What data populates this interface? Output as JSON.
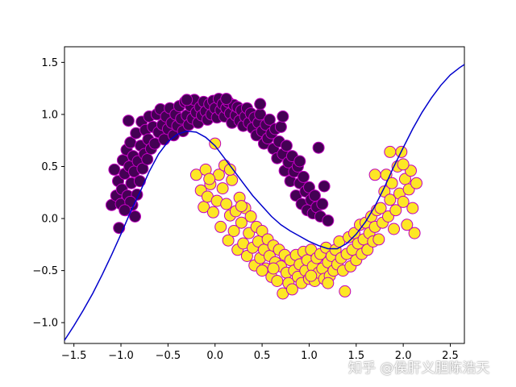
{
  "colors": {
    "class0_fill": "#440154",
    "class1_fill": "#fde725",
    "point_edge": "#c000c0",
    "boundary": "#0000cc",
    "axes": "#000000"
  },
  "watermark": "知乎 @侯肝义胆陈浩天",
  "chart_data": {
    "type": "scatter",
    "title": "",
    "xlabel": "",
    "ylabel": "",
    "xlim": [
      -1.6,
      2.65
    ],
    "ylim": [
      -1.2,
      1.65
    ],
    "grid": false,
    "legend": "none",
    "xticks": [
      -1.5,
      -1.0,
      -0.5,
      0.0,
      0.5,
      1.0,
      1.5,
      2.0,
      2.5
    ],
    "xtick_labels": [
      "−1.5",
      "−1.0",
      "−0.5",
      "0.0",
      "0.5",
      "1.0",
      "1.5",
      "2.0",
      "2.5"
    ],
    "yticks": [
      -1.0,
      -0.5,
      0.0,
      0.5,
      1.0,
      1.5
    ],
    "ytick_labels": [
      "−1.0",
      "−0.5",
      "0.0",
      "0.5",
      "1.0",
      "1.5"
    ],
    "series": [
      {
        "color": "#440154",
        "points": [
          [
            -1.1,
            0.13
          ],
          [
            -1.07,
            0.47
          ],
          [
            -1.05,
            0.22
          ],
          [
            -1.03,
            0.36
          ],
          [
            -1.02,
            -0.09
          ],
          [
            -1.0,
            0.14
          ],
          [
            -0.99,
            0.28
          ],
          [
            -0.98,
            0.56
          ],
          [
            -0.96,
            0.43
          ],
          [
            -0.95,
            0.08
          ],
          [
            -0.94,
            0.66
          ],
          [
            -0.93,
            0.22
          ],
          [
            -0.92,
            0.94
          ],
          [
            -0.91,
            0.5
          ],
          [
            -0.9,
            0.73
          ],
          [
            -0.89,
            0.34
          ],
          [
            -0.88,
            0.13
          ],
          [
            -0.87,
            0.6
          ],
          [
            -0.86,
            0.45
          ],
          [
            -0.85,
            0.02
          ],
          [
            -0.84,
            0.82
          ],
          [
            -0.83,
            0.23
          ],
          [
            -0.82,
            0.55
          ],
          [
            -0.8,
            0.36
          ],
          [
            -0.79,
            0.7
          ],
          [
            -0.78,
            0.93
          ],
          [
            -0.77,
            0.48
          ],
          [
            -0.75,
            0.62
          ],
          [
            -0.74,
            0.85
          ],
          [
            -0.72,
            0.57
          ],
          [
            -0.71,
            0.76
          ],
          [
            -0.7,
            0.98
          ],
          [
            -0.68,
            0.67
          ],
          [
            -0.66,
            0.88
          ],
          [
            -0.64,
            0.72
          ],
          [
            -0.62,
            1.0
          ],
          [
            -0.6,
            0.83
          ],
          [
            -0.58,
            1.05
          ],
          [
            -0.56,
            0.9
          ],
          [
            -0.54,
            0.76
          ],
          [
            -0.52,
            0.98
          ],
          [
            -0.5,
            0.86
          ],
          [
            -0.48,
            1.06
          ],
          [
            -0.46,
            0.92
          ],
          [
            -0.44,
            0.8
          ],
          [
            -0.42,
            1.0
          ],
          [
            -0.4,
            0.89
          ],
          [
            -0.38,
            1.08
          ],
          [
            -0.36,
            0.96
          ],
          [
            -0.34,
            0.84
          ],
          [
            -0.32,
            1.12
          ],
          [
            -0.3,
            0.99
          ],
          [
            -0.28,
            0.9
          ],
          [
            -0.26,
            1.08
          ],
          [
            -0.24,
            0.96
          ],
          [
            -0.22,
            1.14
          ],
          [
            -0.2,
            1.02
          ],
          [
            -0.18,
            0.92
          ],
          [
            -0.16,
            1.07
          ],
          [
            -0.14,
            0.99
          ],
          [
            -0.12,
            1.12
          ],
          [
            -0.1,
            1.03
          ],
          [
            -0.08,
            0.95
          ],
          [
            -0.06,
            1.1
          ],
          [
            -0.04,
            1.0
          ],
          [
            -0.02,
            1.13
          ],
          [
            0.0,
            1.06
          ],
          [
            0.02,
            0.97
          ],
          [
            0.04,
            1.15
          ],
          [
            0.06,
            1.04
          ],
          [
            0.08,
            1.1
          ],
          [
            0.1,
            0.98
          ],
          [
            0.12,
            1.06
          ],
          [
            0.14,
            1.12
          ],
          [
            0.16,
            1.01
          ],
          [
            0.18,
            0.92
          ],
          [
            0.2,
            1.09
          ],
          [
            0.22,
            0.99
          ],
          [
            0.24,
            1.07
          ],
          [
            0.26,
            0.94
          ],
          [
            0.28,
            1.04
          ],
          [
            0.3,
            0.89
          ],
          [
            0.32,
            0.98
          ],
          [
            0.34,
            1.06
          ],
          [
            0.36,
            0.92
          ],
          [
            0.38,
            1.01
          ],
          [
            0.4,
            0.87
          ],
          [
            0.42,
            0.97
          ],
          [
            0.44,
            0.8
          ],
          [
            0.46,
            0.92
          ],
          [
            0.48,
            1.0
          ],
          [
            0.5,
            0.84
          ],
          [
            0.52,
            0.72
          ],
          [
            0.54,
            0.9
          ],
          [
            0.56,
            0.77
          ],
          [
            0.58,
            0.95
          ],
          [
            0.6,
            0.82
          ],
          [
            0.62,
            0.67
          ],
          [
            0.64,
            0.86
          ],
          [
            0.66,
            0.58
          ],
          [
            0.68,
            0.74
          ],
          [
            0.7,
            0.88
          ],
          [
            0.72,
            0.62
          ],
          [
            0.74,
            0.46
          ],
          [
            0.76,
            0.7
          ],
          [
            0.78,
            0.54
          ],
          [
            0.8,
            0.36
          ],
          [
            0.82,
            0.6
          ],
          [
            0.84,
            0.45
          ],
          [
            0.86,
            0.22
          ],
          [
            0.88,
            0.5
          ],
          [
            0.9,
            0.34
          ],
          [
            0.92,
            0.14
          ],
          [
            0.94,
            0.4
          ],
          [
            0.96,
            0.26
          ],
          [
            0.98,
            0.08
          ],
          [
            1.0,
            0.3
          ],
          [
            1.02,
            0.18
          ],
          [
            1.04,
            0.05
          ],
          [
            1.06,
            0.22
          ],
          [
            1.08,
            0.11
          ],
          [
            1.1,
            0.68
          ],
          [
            1.12,
            0.02
          ],
          [
            1.14,
            0.14
          ],
          [
            1.16,
            0.31
          ],
          [
            1.2,
            -0.02
          ],
          [
            -0.9,
            0.16
          ],
          [
            -0.96,
            0.08
          ],
          [
            0.12,
            1.15
          ],
          [
            0.48,
            1.1
          ],
          [
            -0.3,
            1.14
          ],
          [
            0.72,
            0.98
          ],
          [
            0.9,
            0.55
          ]
        ]
      },
      {
        "color": "#fde725",
        "points": [
          [
            -0.2,
            0.42
          ],
          [
            -0.15,
            0.27
          ],
          [
            -0.1,
            0.47
          ],
          [
            -0.12,
            0.11
          ],
          [
            -0.08,
            0.21
          ],
          [
            -0.05,
            0.33
          ],
          [
            -0.02,
            0.06
          ],
          [
            0.0,
            0.72
          ],
          [
            0.02,
            0.17
          ],
          [
            0.04,
            0.42
          ],
          [
            0.06,
            -0.08
          ],
          [
            0.08,
            0.29
          ],
          [
            0.1,
            0.51
          ],
          [
            0.12,
            0.14
          ],
          [
            0.14,
            -0.21
          ],
          [
            0.16,
            0.03
          ],
          [
            0.18,
            0.37
          ],
          [
            0.2,
            -0.12
          ],
          [
            0.22,
            0.07
          ],
          [
            0.24,
            -0.3
          ],
          [
            0.26,
            0.2
          ],
          [
            0.28,
            -0.04
          ],
          [
            0.3,
            -0.24
          ],
          [
            0.32,
            0.1
          ],
          [
            0.34,
            -0.36
          ],
          [
            0.36,
            -0.14
          ],
          [
            0.38,
            0.02
          ],
          [
            0.4,
            -0.28
          ],
          [
            0.42,
            -0.45
          ],
          [
            0.44,
            -0.08
          ],
          [
            0.46,
            -0.22
          ],
          [
            0.48,
            -0.38
          ],
          [
            0.5,
            -0.12
          ],
          [
            0.52,
            -0.3
          ],
          [
            0.54,
            -0.48
          ],
          [
            0.56,
            -0.2
          ],
          [
            0.58,
            -0.36
          ],
          [
            0.6,
            -0.56
          ],
          [
            0.62,
            -0.26
          ],
          [
            0.64,
            -0.42
          ],
          [
            0.66,
            -0.6
          ],
          [
            0.68,
            -0.3
          ],
          [
            0.7,
            -0.46
          ],
          [
            0.72,
            -0.72
          ],
          [
            0.74,
            -0.35
          ],
          [
            0.76,
            -0.52
          ],
          [
            0.78,
            -0.62
          ],
          [
            0.8,
            -0.4
          ],
          [
            0.82,
            -0.68
          ],
          [
            0.84,
            -0.5
          ],
          [
            0.86,
            -0.35
          ],
          [
            0.88,
            -0.56
          ],
          [
            0.9,
            -0.44
          ],
          [
            0.92,
            -0.62
          ],
          [
            0.94,
            -0.32
          ],
          [
            0.96,
            -0.5
          ],
          [
            0.98,
            -0.4
          ],
          [
            1.0,
            -0.58
          ],
          [
            1.02,
            -0.3
          ],
          [
            1.04,
            -0.46
          ],
          [
            1.06,
            -0.6
          ],
          [
            1.08,
            -0.38
          ],
          [
            1.1,
            -0.52
          ],
          [
            1.12,
            -0.34
          ],
          [
            1.14,
            -0.48
          ],
          [
            1.16,
            -0.58
          ],
          [
            1.18,
            -0.28
          ],
          [
            1.2,
            -0.42
          ],
          [
            1.22,
            -0.55
          ],
          [
            1.24,
            -0.36
          ],
          [
            1.26,
            -0.5
          ],
          [
            1.28,
            -0.3
          ],
          [
            1.3,
            -0.44
          ],
          [
            1.32,
            -0.22
          ],
          [
            1.34,
            -0.38
          ],
          [
            1.36,
            -0.5
          ],
          [
            1.38,
            -0.7
          ],
          [
            1.4,
            -0.34
          ],
          [
            1.42,
            -0.18
          ],
          [
            1.44,
            -0.46
          ],
          [
            1.46,
            -0.3
          ],
          [
            1.48,
            -0.14
          ],
          [
            1.5,
            -0.4
          ],
          [
            1.52,
            -0.24
          ],
          [
            1.54,
            -0.06
          ],
          [
            1.56,
            -0.34
          ],
          [
            1.58,
            -0.2
          ],
          [
            1.6,
            -0.04
          ],
          [
            1.62,
            -0.3
          ],
          [
            1.64,
            -0.14
          ],
          [
            1.66,
            0.02
          ],
          [
            1.68,
            -0.22
          ],
          [
            1.7,
            -0.08
          ],
          [
            1.72,
            0.08
          ],
          [
            1.74,
            -0.2
          ],
          [
            1.76,
            0.1
          ],
          [
            1.78,
            -0.04
          ],
          [
            1.8,
            0.26
          ],
          [
            1.82,
            0.42
          ],
          [
            1.84,
            0.02
          ],
          [
            1.86,
            0.18
          ],
          [
            1.88,
            0.34
          ],
          [
            1.9,
            -0.1
          ],
          [
            1.92,
            0.08
          ],
          [
            1.94,
            0.5
          ],
          [
            1.96,
            0.24
          ],
          [
            1.98,
            0.64
          ],
          [
            2.0,
            0.16
          ],
          [
            2.02,
            0.38
          ],
          [
            2.04,
            -0.06
          ],
          [
            2.06,
            0.28
          ],
          [
            2.08,
            0.46
          ],
          [
            2.1,
            0.1
          ],
          [
            2.12,
            -0.14
          ],
          [
            2.14,
            0.34
          ],
          [
            -0.06,
            0.38
          ],
          [
            0.16,
            0.47
          ],
          [
            0.62,
            -0.48
          ],
          [
            1.02,
            -0.55
          ],
          [
            1.86,
            0.64
          ],
          [
            1.7,
            0.42
          ],
          [
            2.0,
            0.52
          ],
          [
            0.28,
            0.12
          ],
          [
            1.2,
            -0.62
          ],
          [
            0.5,
            -0.5
          ]
        ]
      }
    ],
    "decision_boundary": [
      [
        -1.6,
        -1.17
      ],
      [
        -1.5,
        -1.03
      ],
      [
        -1.4,
        -0.88
      ],
      [
        -1.3,
        -0.72
      ],
      [
        -1.2,
        -0.54
      ],
      [
        -1.1,
        -0.35
      ],
      [
        -1.0,
        -0.15
      ],
      [
        -0.9,
        0.06
      ],
      [
        -0.8,
        0.25
      ],
      [
        -0.7,
        0.45
      ],
      [
        -0.6,
        0.62
      ],
      [
        -0.5,
        0.74
      ],
      [
        -0.4,
        0.81
      ],
      [
        -0.3,
        0.84
      ],
      [
        -0.2,
        0.83
      ],
      [
        -0.1,
        0.78
      ],
      [
        0.0,
        0.7
      ],
      [
        0.1,
        0.58
      ],
      [
        0.2,
        0.46
      ],
      [
        0.3,
        0.34
      ],
      [
        0.4,
        0.22
      ],
      [
        0.5,
        0.12
      ],
      [
        0.6,
        0.02
      ],
      [
        0.7,
        -0.06
      ],
      [
        0.8,
        -0.12
      ],
      [
        0.9,
        -0.17
      ],
      [
        1.0,
        -0.22
      ],
      [
        1.1,
        -0.26
      ],
      [
        1.2,
        -0.29
      ],
      [
        1.3,
        -0.29
      ],
      [
        1.4,
        -0.24
      ],
      [
        1.5,
        -0.15
      ],
      [
        1.6,
        -0.03
      ],
      [
        1.7,
        0.12
      ],
      [
        1.8,
        0.3
      ],
      [
        1.9,
        0.5
      ],
      [
        2.0,
        0.68
      ],
      [
        2.1,
        0.86
      ],
      [
        2.2,
        1.02
      ],
      [
        2.3,
        1.16
      ],
      [
        2.4,
        1.28
      ],
      [
        2.5,
        1.38
      ],
      [
        2.6,
        1.45
      ],
      [
        2.65,
        1.48
      ]
    ]
  }
}
